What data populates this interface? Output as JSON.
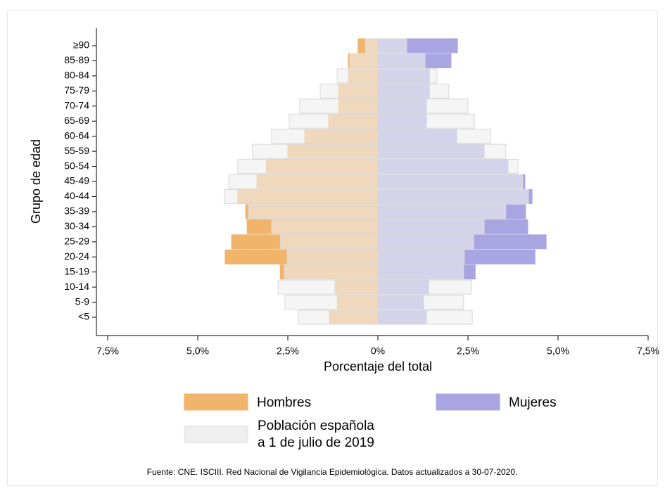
{
  "chart_data": {
    "type": "pyramid",
    "y_label": "Grupo de edad",
    "x_label": "Porcentaje del total",
    "source": "Fuente: CNE. ISCIII. Red Nacional de Vigilancia Epidemiológica. Datos actualizados a 30-07-2020.",
    "categories": [
      "<5",
      "5-9",
      "10-14",
      "15-19",
      "20-24",
      "25-29",
      "30-34",
      "35-39",
      "40-44",
      "45-49",
      "50-54",
      "55-59",
      "60-64",
      "65-69",
      "70-74",
      "75-79",
      "80-84",
      "85-89",
      "≥90"
    ],
    "series": [
      {
        "name": "Hombres",
        "color": "#f0b46a",
        "values": [
          -1.35,
          -1.13,
          -1.19,
          -2.71,
          -4.24,
          -4.06,
          -3.63,
          -3.67,
          -3.89,
          -3.36,
          -3.1,
          -2.5,
          -2.03,
          -1.37,
          -1.09,
          -1.09,
          -0.82,
          -0.82,
          -0.55
        ]
      },
      {
        "name": "Mujeres",
        "color": "#a9a5e2",
        "values": [
          1.35,
          1.27,
          1.41,
          2.7,
          4.36,
          4.67,
          4.16,
          4.1,
          4.28,
          4.08,
          3.61,
          2.95,
          2.19,
          1.35,
          1.35,
          1.43,
          1.43,
          2.03,
          2.21
        ]
      }
    ],
    "reference": {
      "name": [
        "Población española",
        "a 1 de julio de 2019"
      ],
      "color": "#efefef",
      "hombres": [
        -2.21,
        -2.58,
        -2.77,
        -2.6,
        -2.52,
        -2.71,
        -2.95,
        -3.59,
        -4.26,
        -4.14,
        -3.89,
        -3.48,
        -2.95,
        -2.46,
        -2.17,
        -1.6,
        -1.13,
        -0.78,
        -0.35
      ],
      "mujeres": [
        2.62,
        2.38,
        2.6,
        2.38,
        2.4,
        2.66,
        2.95,
        3.55,
        4.18,
        4.02,
        3.89,
        3.55,
        3.13,
        2.68,
        2.5,
        1.97,
        1.64,
        1.31,
        0.8
      ]
    },
    "xlim": [
      -7.5,
      7.5
    ],
    "xticks": [
      {
        "value": -7.5,
        "label": "7,5%"
      },
      {
        "value": -5,
        "label": "5,0%"
      },
      {
        "value": -2.5,
        "label": "2,5%"
      },
      {
        "value": 0,
        "label": "0%"
      },
      {
        "value": 2.5,
        "label": "2,5%"
      },
      {
        "value": 5,
        "label": "5,0%"
      },
      {
        "value": 7.5,
        "label": "7,5%"
      }
    ]
  }
}
